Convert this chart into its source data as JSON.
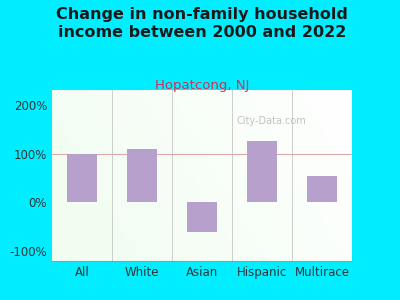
{
  "categories": [
    "All",
    "White",
    "Asian",
    "Hispanic",
    "Multirace"
  ],
  "values": [
    100,
    110,
    -60,
    125,
    55
  ],
  "bar_color": "#b8a0cc",
  "title": "Change in non-family household\nincome between 2000 and 2022",
  "subtitle": "Hopatcong, NJ",
  "title_color": "#1a1a1a",
  "subtitle_color": "#cc3355",
  "background_color": "#00eeff",
  "ylim": [
    -120,
    230
  ],
  "yticks": [
    -100,
    0,
    100,
    200
  ],
  "ytick_labels": [
    "-100%",
    "0%",
    "100%",
    "200%"
  ],
  "hline_y": 100,
  "hline_color": "#ddaaaa",
  "watermark": "City-Data.com",
  "title_fontsize": 11.5,
  "subtitle_fontsize": 9.5,
  "axis_label_fontsize": 8.5
}
